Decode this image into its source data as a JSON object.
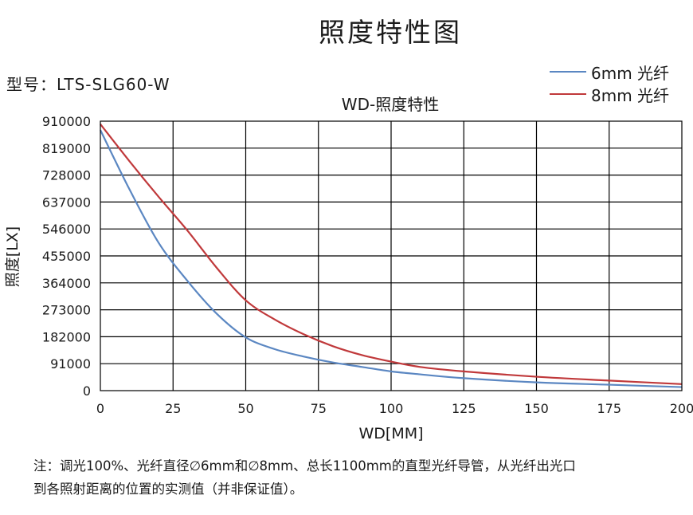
{
  "page": {
    "main_title": "照度特性图",
    "model_label": "型号：LTS-SLG60-W",
    "note_line1": "注：调光100%、光纤直径∅6mm和∅8mm、总长1100mm的直型光纤导管，从光纤出光口",
    "note_line2": "到各照射距离的位置的实测值（并非保证值）。"
  },
  "colors": {
    "series_6mm": "#5b87c2",
    "series_8mm": "#c0393b",
    "grid": "#000000",
    "axis_text": "#1a1a1a"
  },
  "chart_data": {
    "type": "line",
    "title": "WD-照度特性",
    "xlabel": "WD[MM]",
    "ylabel": "照度[LX]",
    "xlim": [
      0,
      200
    ],
    "ylim": [
      0,
      910000
    ],
    "x_ticks": [
      "0",
      "25",
      "50",
      "75",
      "100",
      "125",
      "150",
      "175",
      "200"
    ],
    "y_ticks": [
      "0",
      "91000",
      "182000",
      "273000",
      "364000",
      "455000",
      "546000",
      "637000",
      "728000",
      "819000",
      "910000"
    ],
    "grid": true,
    "legend_position": "top-right",
    "series": [
      {
        "name": "6mm 光纤",
        "color": "#5b87c2",
        "x": [
          0,
          10,
          20,
          30,
          40,
          50,
          60,
          70,
          80,
          90,
          100,
          110,
          125,
          150,
          175,
          200
        ],
        "y": [
          880000,
          680000,
          500000,
          370000,
          260000,
          180000,
          140000,
          115000,
          95000,
          80000,
          65000,
          55000,
          42000,
          28000,
          20000,
          12000
        ]
      },
      {
        "name": "8mm 光纤",
        "color": "#c0393b",
        "x": [
          0,
          10,
          20,
          30,
          40,
          50,
          60,
          70,
          80,
          90,
          100,
          110,
          125,
          150,
          175,
          200
        ],
        "y": [
          900000,
          775000,
          655000,
          540000,
          415000,
          305000,
          240000,
          190000,
          150000,
          120000,
          98000,
          80000,
          65000,
          47000,
          34000,
          22000
        ]
      }
    ]
  }
}
